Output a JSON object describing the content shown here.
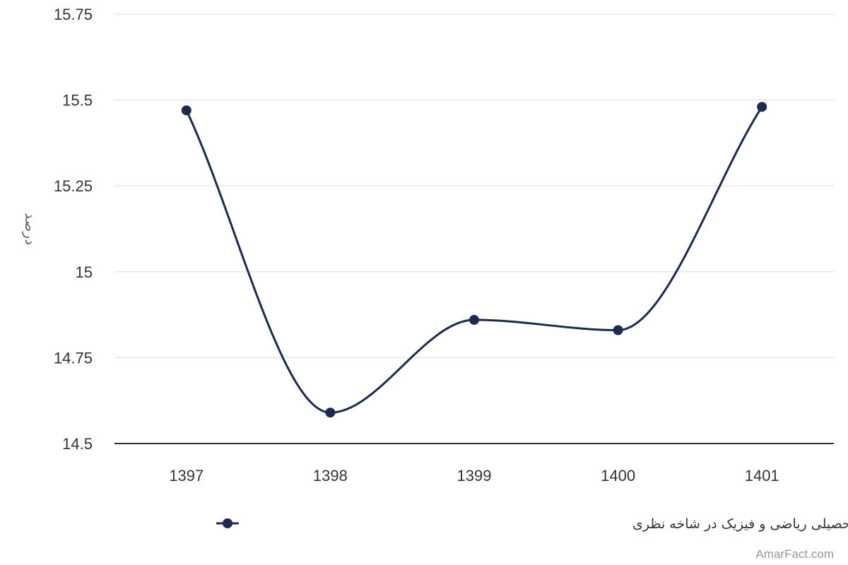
{
  "chart_data": {
    "type": "line",
    "smooth": true,
    "categories": [
      "1397",
      "1398",
      "1399",
      "1400",
      "1401"
    ],
    "series": [
      {
        "name": "سهم دانش‌آموزان رشته تحصیلی ریاضی و فیزیک در شاخه نظری",
        "values": [
          15.47,
          14.59,
          14.86,
          14.83,
          15.48
        ],
        "color": "#1b2a4e"
      }
    ],
    "ylabel": "درصد",
    "ylim": [
      14.5,
      15.75
    ],
    "yticks": [
      14.5,
      14.75,
      15,
      15.25,
      15.5,
      15.75
    ],
    "ytick_labels": [
      "14.5",
      "14.75",
      "15",
      "15.25",
      "15.5",
      "15.75"
    ],
    "grid": true,
    "legend_position": "bottom-center"
  },
  "credit": "AmarFact.com",
  "colors": {
    "grid": "#e6e6e6",
    "axis": "#333333",
    "series": "#1b2a4e"
  }
}
